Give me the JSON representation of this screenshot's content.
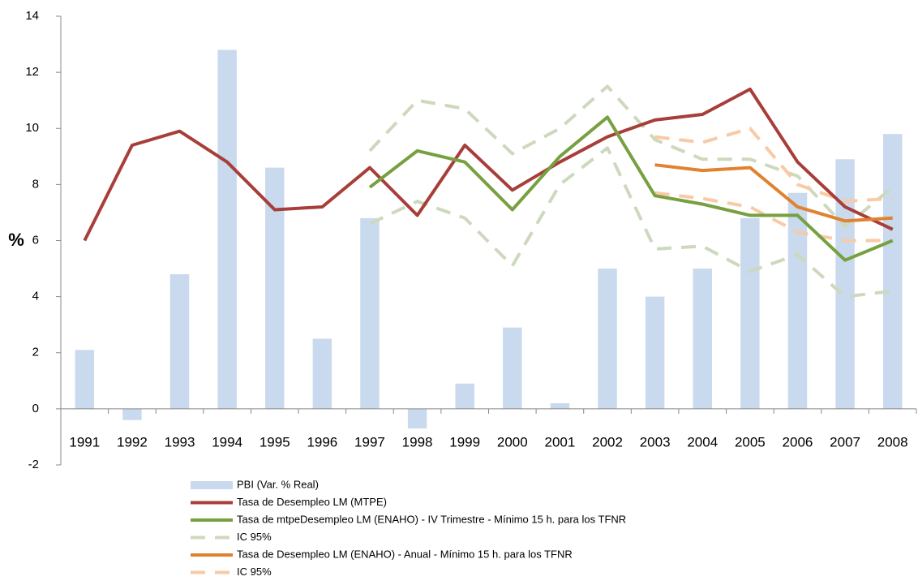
{
  "chart_data": {
    "type": "combo",
    "ylabel": "%",
    "categories": [
      "1991",
      "1992",
      "1993",
      "1994",
      "1995",
      "1996",
      "1997",
      "1998",
      "1999",
      "2000",
      "2001",
      "2002",
      "2003",
      "2004",
      "2005",
      "2006",
      "2007",
      "2008"
    ],
    "ylim": [
      -2,
      14
    ],
    "yticks": [
      -2,
      0,
      2,
      4,
      6,
      8,
      10,
      12,
      14
    ],
    "grid": false,
    "series": [
      {
        "name": "PBI (Var. % Real)",
        "type": "bar",
        "color": "#c9d9ee",
        "values": [
          2.1,
          -0.4,
          4.8,
          12.8,
          8.6,
          2.5,
          6.8,
          -0.7,
          0.9,
          2.9,
          0.2,
          5.0,
          4.0,
          5.0,
          6.8,
          7.7,
          8.9,
          9.8
        ]
      },
      {
        "name": "Tasa de Desempleo LM (MTPE)",
        "type": "line",
        "color": "#a83e3a",
        "values": [
          6.0,
          9.4,
          9.9,
          8.8,
          7.1,
          7.2,
          8.6,
          6.9,
          9.4,
          7.8,
          8.8,
          9.7,
          10.3,
          10.5,
          11.4,
          8.8,
          7.2,
          6.4
        ]
      },
      {
        "name": "Tasa de mtpeDesempleo LM (ENAHO) - IV Trimestre - Mínimo 15 h. para los TFNR",
        "type": "line",
        "color": "#77a040",
        "values": [
          null,
          null,
          null,
          null,
          null,
          null,
          7.9,
          9.2,
          8.8,
          7.1,
          9.0,
          10.4,
          7.6,
          7.3,
          6.9,
          6.9,
          5.3,
          6.0
        ]
      },
      {
        "name": "IC 95%",
        "type": "band-lines",
        "color": "#cdd9bd",
        "values": [
          null,
          null,
          null,
          null,
          null,
          null,
          9.2,
          11.0,
          10.7,
          9.1,
          10.0,
          11.5,
          9.6,
          8.9,
          8.9,
          8.3,
          6.5,
          7.9
        ],
        "lower": [
          null,
          null,
          null,
          null,
          null,
          null,
          6.6,
          7.4,
          6.8,
          5.1,
          8.0,
          9.3,
          5.7,
          5.8,
          4.9,
          5.5,
          4.0,
          4.2
        ]
      },
      {
        "name": "Tasa de Desempleo LM (ENAHO) - Anual - Mínimo 15 h. para los TFNR",
        "type": "line",
        "color": "#e0822f",
        "values": [
          null,
          null,
          null,
          null,
          null,
          null,
          null,
          null,
          null,
          null,
          null,
          null,
          8.7,
          8.5,
          8.6,
          7.2,
          6.7,
          6.8
        ]
      },
      {
        "name": "IC 95%",
        "type": "band-lines",
        "color": "#f8caa6",
        "values": [
          null,
          null,
          null,
          null,
          null,
          null,
          null,
          null,
          null,
          null,
          null,
          null,
          9.7,
          9.5,
          10.0,
          8.0,
          7.4,
          7.5
        ],
        "lower": [
          null,
          null,
          null,
          null,
          null,
          null,
          null,
          null,
          null,
          null,
          null,
          null,
          7.7,
          7.5,
          7.2,
          6.3,
          6.0,
          6.0
        ]
      }
    ]
  }
}
